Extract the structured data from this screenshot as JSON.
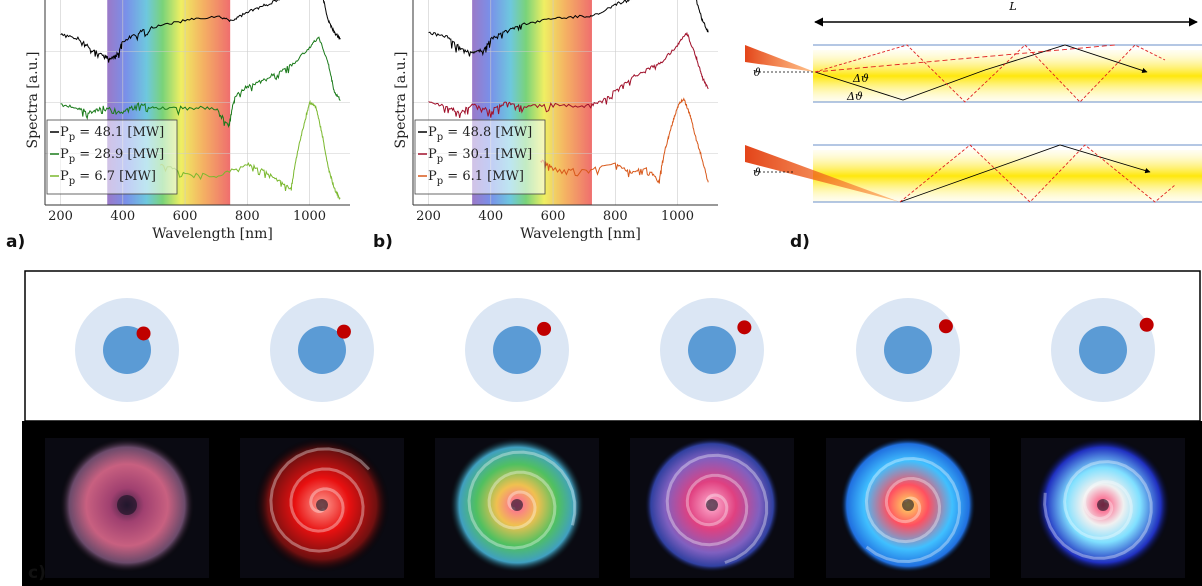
{
  "panel_letters": {
    "a": "a)",
    "b": "b)",
    "c": "c)",
    "d": "d)"
  },
  "chart_data": [
    {
      "id": "a",
      "type": "line",
      "xlabel": "Wavelength [nm]",
      "ylabel": "Spectra [a.u.]",
      "xlim": [
        150,
        1130
      ],
      "xticks": [
        200,
        400,
        600,
        800,
        1000
      ],
      "grid": true,
      "visible_band_nm": [
        350,
        745
      ],
      "legend_position": "bottom-left",
      "series": [
        {
          "name": "P_p = 48.1 [MW]",
          "label_main": "P",
          "label_sub": "p",
          "label_rest": " = 48.1 [MW]",
          "color": "#000000",
          "offset": 0.78,
          "x": [
            200,
            260,
            300,
            340,
            360,
            380,
            400,
            450,
            500,
            600,
            700,
            750,
            800,
            850,
            900,
            950,
            1000,
            1020,
            1040,
            1060,
            1080,
            1100
          ],
          "y": [
            0.05,
            0.03,
            -0.02,
            -0.05,
            -0.07,
            -0.05,
            0.02,
            0.06,
            0.09,
            0.12,
            0.14,
            0.12,
            0.16,
            0.19,
            0.22,
            0.24,
            0.3,
            0.38,
            0.25,
            0.12,
            0.06,
            0.03
          ]
        },
        {
          "name": "P_p = 28.9 [MW]",
          "label_main": "P",
          "label_sub": "p",
          "label_rest": " = 28.9 [MW]",
          "color": "#1a7a1a",
          "offset": 0.47,
          "x": [
            200,
            260,
            300,
            340,
            400,
            450,
            500,
            600,
            700,
            740,
            760,
            800,
            850,
            900,
            950,
            1000,
            1030,
            1060,
            1080,
            1100
          ],
          "y": [
            0.02,
            0.0,
            -0.02,
            0.01,
            -0.02,
            0.03,
            0.0,
            0.01,
            0.0,
            -0.08,
            0.06,
            0.11,
            0.14,
            0.18,
            0.22,
            0.3,
            0.35,
            0.22,
            0.08,
            0.04
          ]
        },
        {
          "name": "P_p = 6.7 [MW]",
          "label_main": "P",
          "label_sub": "p",
          "label_rest": " = 6.7 [MW]",
          "color": "#7ab82e",
          "offset": 0.2,
          "x": [
            520,
            600,
            700,
            800,
            850,
            900,
            940,
            960,
            980,
            1000,
            1020,
            1040,
            1060,
            1080,
            1100
          ],
          "y": [
            0.0,
            -0.04,
            -0.06,
            0.0,
            -0.03,
            -0.08,
            -0.12,
            0.05,
            0.18,
            0.3,
            0.28,
            0.15,
            -0.02,
            -0.12,
            -0.18
          ]
        }
      ]
    },
    {
      "id": "b",
      "type": "line",
      "xlabel": "Wavelength [nm]",
      "ylabel": "Spectra [a.u.]",
      "xlim": [
        150,
        1130
      ],
      "xticks": [
        200,
        400,
        600,
        800,
        1000
      ],
      "grid": true,
      "visible_band_nm": [
        340,
        725
      ],
      "legend_position": "bottom-left",
      "series": [
        {
          "name": "P_p = 48.8 [MW]",
          "label_main": "P",
          "label_sub": "p",
          "label_rest": " = 48.8 [MW]",
          "color": "#000000",
          "offset": 0.8,
          "x": [
            200,
            260,
            300,
            340,
            380,
            400,
            450,
            500,
            600,
            700,
            750,
            800,
            850,
            900,
            950,
            1000,
            1040,
            1060,
            1080,
            1100
          ],
          "y": [
            0.04,
            0.02,
            -0.03,
            -0.06,
            -0.04,
            0.01,
            0.05,
            0.08,
            0.11,
            0.12,
            0.13,
            0.18,
            0.2,
            0.24,
            0.26,
            0.3,
            0.32,
            0.2,
            0.1,
            0.04
          ]
        },
        {
          "name": "P_p = 30.1 [MW]",
          "label_main": "P",
          "label_sub": "p",
          "label_rest": " = 30.1 [MW]",
          "color": "#a0102a",
          "offset": 0.48,
          "x": [
            200,
            260,
            300,
            340,
            400,
            450,
            500,
            600,
            700,
            750,
            800,
            850,
            900,
            950,
            1000,
            1030,
            1060,
            1080,
            1100
          ],
          "y": [
            0.02,
            0.0,
            -0.03,
            0.01,
            -0.02,
            0.02,
            0.0,
            0.01,
            0.0,
            0.02,
            0.08,
            0.14,
            0.18,
            0.22,
            0.3,
            0.36,
            0.24,
            0.14,
            0.08
          ]
        },
        {
          "name": "P_p = 6.1 [MW]",
          "label_main": "P",
          "label_sub": "p",
          "label_rest": " = 6.1 [MW]",
          "color": "#d8581a",
          "offset": 0.22,
          "x": [
            560,
            600,
            700,
            800,
            850,
            900,
            940,
            960,
            980,
            1000,
            1020,
            1040,
            1060,
            1080,
            1100
          ],
          "y": [
            0.0,
            -0.04,
            -0.05,
            -0.02,
            -0.06,
            -0.04,
            -0.1,
            0.05,
            0.16,
            0.26,
            0.3,
            0.22,
            0.1,
            0.0,
            -0.12
          ]
        }
      ]
    }
  ],
  "diagram_d": {
    "length_label": "L",
    "angle_label": "ϑ",
    "delta_label": "Δϑ"
  },
  "schematic_c": {
    "core_color": "#5b9bd5",
    "cladding_color": "#dbe6f4",
    "spot_color": "#c00000",
    "spot_angles_deg": [
      45,
      40,
      38,
      35,
      32,
      30
    ],
    "spot_radius_frac": [
      0.45,
      0.55,
      0.66,
      0.76,
      0.86,
      0.97
    ]
  },
  "photos_c": [
    {
      "style": "pink-speckle"
    },
    {
      "style": "red-spiral"
    },
    {
      "style": "multicolor-spiral"
    },
    {
      "style": "purple-spiral"
    },
    {
      "style": "cyan-spiral"
    },
    {
      "style": "white-blue-spiral"
    }
  ]
}
